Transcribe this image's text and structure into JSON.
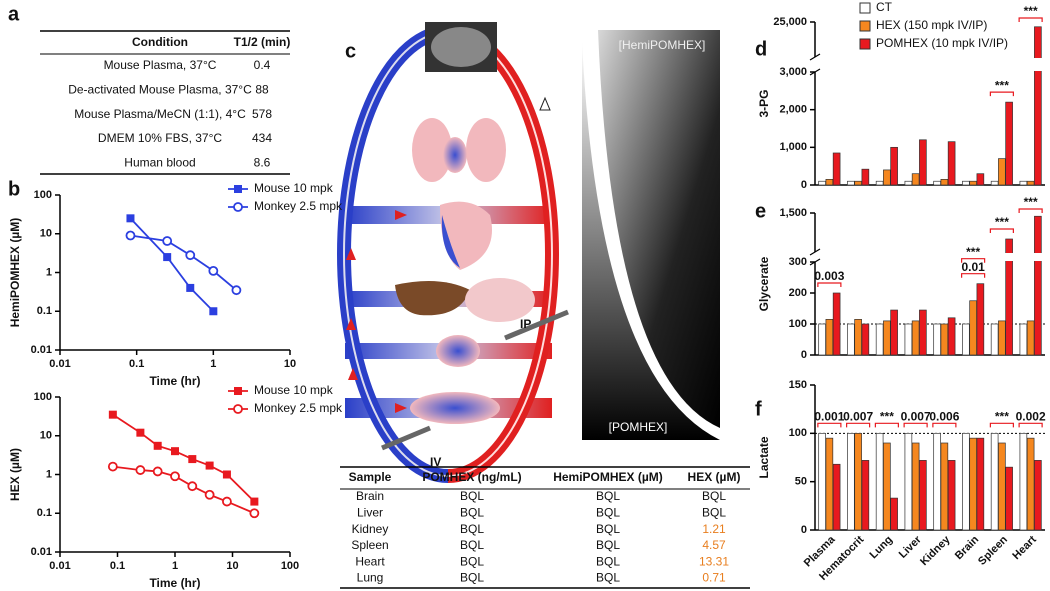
{
  "panel_labels": [
    "a",
    "b",
    "c",
    "d",
    "e",
    "f"
  ],
  "table_a": {
    "header": [
      "Condition",
      "T1/2 (min)"
    ],
    "rows": [
      [
        "Mouse Plasma, 37°C",
        "0.4"
      ],
      [
        "De-activated Mouse Plasma, 37°C",
        "88"
      ],
      [
        "Mouse Plasma/MeCN (1:1), 4°C",
        "578"
      ],
      [
        "DMEM 10% FBS, 37°C",
        "434"
      ],
      [
        "Human blood",
        "8.6"
      ]
    ]
  },
  "chart_data": [
    {
      "type": "line",
      "log_x": true,
      "log_y": true,
      "xlabel": "Time (hr)",
      "ylabel": "HemiPOMHEX (µM)",
      "xlim": [
        0.01,
        10
      ],
      "ylim": [
        0.01,
        100
      ],
      "xticks": [
        0.01,
        0.1,
        1,
        10
      ],
      "yticks": [
        0.01,
        0.1,
        1,
        10,
        100
      ],
      "legend": "upper right",
      "series": [
        {
          "name": "Mouse 10 mpk",
          "color": "#2b3fe0",
          "marker": "square",
          "x": [
            0.083,
            0.25,
            0.5,
            1
          ],
          "values": [
            25,
            2.5,
            0.4,
            0.1
          ]
        },
        {
          "name": "Monkey 2.5 mpk",
          "color": "#2b3fe0",
          "marker": "open-circle",
          "x": [
            0.083,
            0.25,
            0.5,
            1,
            2
          ],
          "values": [
            9,
            6.5,
            2.8,
            1.1,
            0.35
          ]
        }
      ]
    },
    {
      "type": "line",
      "log_x": true,
      "log_y": true,
      "xlabel": "Time (hr)",
      "ylabel": "HEX (µM)",
      "xlim": [
        0.01,
        100
      ],
      "ylim": [
        0.01,
        100
      ],
      "xticks": [
        0.01,
        0.1,
        1,
        10,
        100
      ],
      "yticks": [
        0.01,
        0.1,
        1,
        10,
        100
      ],
      "legend": "upper right",
      "series": [
        {
          "name": "Mouse 10 mpk",
          "color": "#e8191f",
          "marker": "square",
          "x": [
            0.083,
            0.25,
            0.5,
            1,
            2,
            4,
            8,
            24
          ],
          "values": [
            35,
            12,
            5.5,
            4,
            2.5,
            1.7,
            1,
            0.2
          ]
        },
        {
          "name": "Monkey 2.5 mpk",
          "color": "#e8191f",
          "marker": "open-circle",
          "x": [
            0.083,
            0.25,
            0.5,
            1,
            2,
            4,
            8,
            24
          ],
          "values": [
            1.6,
            1.3,
            1.2,
            0.9,
            0.5,
            0.3,
            0.2,
            0.1
          ]
        }
      ]
    },
    {
      "type": "bar",
      "ylabel": "3-PG",
      "ylim": [
        0,
        25000
      ],
      "y_break": 3000,
      "yticks": [
        0,
        {
          "value": 1000,
          "label": "1,000"
        },
        {
          "value": 2000,
          "label": "2,000"
        },
        {
          "value": 3000,
          "label": "3,000"
        },
        {
          "value": 25000,
          "label": "25,000"
        }
      ],
      "legend": "upper left",
      "series": [
        {
          "name": "CT",
          "color": "#ffffff",
          "values": [
            100,
            100,
            100,
            100,
            100,
            100,
            100,
            100
          ]
        },
        {
          "name": "HEX (150 mpk IV/IP)",
          "color": "#f5871f",
          "values": [
            150,
            100,
            400,
            300,
            150,
            100,
            700,
            100
          ]
        },
        {
          "name": "POMHEX (10 mpk IV/IP)",
          "color": "#e8191f",
          "values": [
            850,
            420,
            1000,
            1200,
            1150,
            300,
            2200,
            22000
          ]
        }
      ],
      "annotations": [
        [],
        [],
        [],
        [],
        [],
        [],
        [
          "***"
        ],
        [
          "***"
        ]
      ]
    },
    {
      "type": "bar",
      "ylabel": "Glycerate",
      "ylim": [
        0,
        1500
      ],
      "y_break": 300,
      "yticks": [
        0,
        100,
        200,
        300,
        {
          "value": 1500,
          "label": "1,500"
        }
      ],
      "reference_line": 100,
      "series": [
        {
          "color": "#ffffff",
          "values": [
            100,
            100,
            100,
            100,
            100,
            100,
            100,
            100
          ]
        },
        {
          "color": "#f5871f",
          "values": [
            115,
            115,
            110,
            110,
            100,
            175,
            110,
            110
          ]
        },
        {
          "color": "#e8191f",
          "values": [
            200,
            100,
            145,
            145,
            120,
            230,
            700,
            1400
          ]
        }
      ],
      "annotations": [
        [
          "0.003"
        ],
        [],
        [],
        [],
        [],
        [
          "0.01",
          "***"
        ],
        [
          "***"
        ],
        [
          "***"
        ]
      ]
    },
    {
      "type": "bar",
      "ylabel": "Lactate",
      "ylim": [
        0,
        150
      ],
      "yticks": [
        0,
        50,
        100,
        150
      ],
      "reference_line": 100,
      "categories": [
        "Plasma",
        "Hematocrit",
        "Lung",
        "Liver",
        "Kidney",
        "Brain",
        "Spleen",
        "Heart"
      ],
      "series": [
        {
          "color": "#ffffff",
          "values": [
            100,
            100,
            100,
            100,
            100,
            100,
            100,
            100
          ]
        },
        {
          "color": "#f5871f",
          "values": [
            95,
            100,
            90,
            90,
            90,
            95,
            90,
            95
          ]
        },
        {
          "color": "#e8191f",
          "values": [
            68,
            72,
            33,
            72,
            72,
            95,
            65,
            72
          ]
        }
      ],
      "annotations": [
        [
          "0.001"
        ],
        [
          "0.007"
        ],
        [
          "***"
        ],
        [
          "0.007"
        ],
        [
          "0.006"
        ],
        [],
        [
          "***"
        ],
        [
          "0.002"
        ]
      ]
    }
  ],
  "diagram_c": {
    "gradient_top": "[HemiPOMHEX]",
    "gradient_bottom": "[POMHEX]",
    "route_ip": "IP",
    "route_iv": "IV"
  },
  "table_c": {
    "header": [
      "Sample",
      "POMHEX (ng/mL)",
      "HemiPOMHEX (µM)",
      "HEX (µM)"
    ],
    "value_color": "#e87e1e",
    "rows": [
      [
        "Brain",
        "BQL",
        "BQL",
        "BQL"
      ],
      [
        "Liver",
        "BQL",
        "BQL",
        "BQL"
      ],
      [
        "Kidney",
        "BQL",
        "BQL",
        "1.21"
      ],
      [
        "Spleen",
        "BQL",
        "BQL",
        "4.57"
      ],
      [
        "Heart",
        "BQL",
        "BQL",
        "13.31"
      ],
      [
        "Lung",
        "BQL",
        "BQL",
        "0.71"
      ]
    ]
  }
}
